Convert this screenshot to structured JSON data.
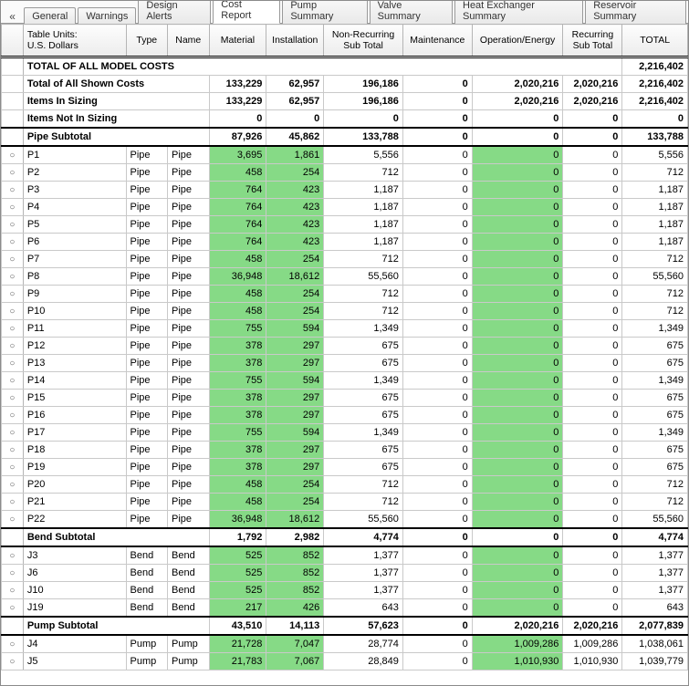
{
  "tabs": [
    "General",
    "Warnings",
    "Design Alerts",
    "Cost Report",
    "Pump Summary",
    "Valve Summary",
    "Heat Exchanger Summary",
    "Reservoir Summary"
  ],
  "activeTab": 3,
  "collapse_icon": "«",
  "headers": {
    "units": "Table Units:\nU.S. Dollars",
    "type": "Type",
    "name": "Name",
    "material": "Material",
    "installation": "Installation",
    "nrst": "Non-Recurring\nSub Total",
    "maint": "Maintenance",
    "opEn": "Operation/Energy",
    "rst": "Recurring\nSub Total",
    "total": "TOTAL"
  },
  "summary_title": "TOTAL OF ALL MODEL COSTS",
  "summary_total": "2,216,402",
  "summary_rows": [
    {
      "label": "Total of All Shown Costs",
      "mat": "133,229",
      "inst": "62,957",
      "nrst": "196,186",
      "maint": "0",
      "open": "2,020,216",
      "rst": "2,020,216",
      "tot": "2,216,402"
    },
    {
      "label": "Items In Sizing",
      "mat": "133,229",
      "inst": "62,957",
      "nrst": "196,186",
      "maint": "0",
      "open": "2,020,216",
      "rst": "2,020,216",
      "tot": "2,216,402"
    },
    {
      "label": "Items Not In Sizing",
      "mat": "0",
      "inst": "0",
      "nrst": "0",
      "maint": "0",
      "open": "0",
      "rst": "0",
      "tot": "0"
    }
  ],
  "sections": [
    {
      "title": "Pipe Subtotal",
      "mat": "87,926",
      "inst": "45,862",
      "nrst": "133,788",
      "maint": "0",
      "open": "0",
      "rst": "0",
      "tot": "133,788",
      "rows": [
        {
          "id": "P1",
          "t": "Pipe",
          "n": "Pipe",
          "mat": "3,695",
          "inst": "1,861",
          "nrst": "5,556",
          "maint": "0",
          "open": "0",
          "rst": "0",
          "tot": "5,556"
        },
        {
          "id": "P2",
          "t": "Pipe",
          "n": "Pipe",
          "mat": "458",
          "inst": "254",
          "nrst": "712",
          "maint": "0",
          "open": "0",
          "rst": "0",
          "tot": "712"
        },
        {
          "id": "P3",
          "t": "Pipe",
          "n": "Pipe",
          "mat": "764",
          "inst": "423",
          "nrst": "1,187",
          "maint": "0",
          "open": "0",
          "rst": "0",
          "tot": "1,187"
        },
        {
          "id": "P4",
          "t": "Pipe",
          "n": "Pipe",
          "mat": "764",
          "inst": "423",
          "nrst": "1,187",
          "maint": "0",
          "open": "0",
          "rst": "0",
          "tot": "1,187"
        },
        {
          "id": "P5",
          "t": "Pipe",
          "n": "Pipe",
          "mat": "764",
          "inst": "423",
          "nrst": "1,187",
          "maint": "0",
          "open": "0",
          "rst": "0",
          "tot": "1,187"
        },
        {
          "id": "P6",
          "t": "Pipe",
          "n": "Pipe",
          "mat": "764",
          "inst": "423",
          "nrst": "1,187",
          "maint": "0",
          "open": "0",
          "rst": "0",
          "tot": "1,187"
        },
        {
          "id": "P7",
          "t": "Pipe",
          "n": "Pipe",
          "mat": "458",
          "inst": "254",
          "nrst": "712",
          "maint": "0",
          "open": "0",
          "rst": "0",
          "tot": "712"
        },
        {
          "id": "P8",
          "t": "Pipe",
          "n": "Pipe",
          "mat": "36,948",
          "inst": "18,612",
          "nrst": "55,560",
          "maint": "0",
          "open": "0",
          "rst": "0",
          "tot": "55,560"
        },
        {
          "id": "P9",
          "t": "Pipe",
          "n": "Pipe",
          "mat": "458",
          "inst": "254",
          "nrst": "712",
          "maint": "0",
          "open": "0",
          "rst": "0",
          "tot": "712"
        },
        {
          "id": "P10",
          "t": "Pipe",
          "n": "Pipe",
          "mat": "458",
          "inst": "254",
          "nrst": "712",
          "maint": "0",
          "open": "0",
          "rst": "0",
          "tot": "712"
        },
        {
          "id": "P11",
          "t": "Pipe",
          "n": "Pipe",
          "mat": "755",
          "inst": "594",
          "nrst": "1,349",
          "maint": "0",
          "open": "0",
          "rst": "0",
          "tot": "1,349"
        },
        {
          "id": "P12",
          "t": "Pipe",
          "n": "Pipe",
          "mat": "378",
          "inst": "297",
          "nrst": "675",
          "maint": "0",
          "open": "0",
          "rst": "0",
          "tot": "675"
        },
        {
          "id": "P13",
          "t": "Pipe",
          "n": "Pipe",
          "mat": "378",
          "inst": "297",
          "nrst": "675",
          "maint": "0",
          "open": "0",
          "rst": "0",
          "tot": "675"
        },
        {
          "id": "P14",
          "t": "Pipe",
          "n": "Pipe",
          "mat": "755",
          "inst": "594",
          "nrst": "1,349",
          "maint": "0",
          "open": "0",
          "rst": "0",
          "tot": "1,349"
        },
        {
          "id": "P15",
          "t": "Pipe",
          "n": "Pipe",
          "mat": "378",
          "inst": "297",
          "nrst": "675",
          "maint": "0",
          "open": "0",
          "rst": "0",
          "tot": "675"
        },
        {
          "id": "P16",
          "t": "Pipe",
          "n": "Pipe",
          "mat": "378",
          "inst": "297",
          "nrst": "675",
          "maint": "0",
          "open": "0",
          "rst": "0",
          "tot": "675"
        },
        {
          "id": "P17",
          "t": "Pipe",
          "n": "Pipe",
          "mat": "755",
          "inst": "594",
          "nrst": "1,349",
          "maint": "0",
          "open": "0",
          "rst": "0",
          "tot": "1,349"
        },
        {
          "id": "P18",
          "t": "Pipe",
          "n": "Pipe",
          "mat": "378",
          "inst": "297",
          "nrst": "675",
          "maint": "0",
          "open": "0",
          "rst": "0",
          "tot": "675"
        },
        {
          "id": "P19",
          "t": "Pipe",
          "n": "Pipe",
          "mat": "378",
          "inst": "297",
          "nrst": "675",
          "maint": "0",
          "open": "0",
          "rst": "0",
          "tot": "675"
        },
        {
          "id": "P20",
          "t": "Pipe",
          "n": "Pipe",
          "mat": "458",
          "inst": "254",
          "nrst": "712",
          "maint": "0",
          "open": "0",
          "rst": "0",
          "tot": "712"
        },
        {
          "id": "P21",
          "t": "Pipe",
          "n": "Pipe",
          "mat": "458",
          "inst": "254",
          "nrst": "712",
          "maint": "0",
          "open": "0",
          "rst": "0",
          "tot": "712"
        },
        {
          "id": "P22",
          "t": "Pipe",
          "n": "Pipe",
          "mat": "36,948",
          "inst": "18,612",
          "nrst": "55,560",
          "maint": "0",
          "open": "0",
          "rst": "0",
          "tot": "55,560"
        }
      ]
    },
    {
      "title": "Bend Subtotal",
      "mat": "1,792",
      "inst": "2,982",
      "nrst": "4,774",
      "maint": "0",
      "open": "0",
      "rst": "0",
      "tot": "4,774",
      "rows": [
        {
          "id": "J3",
          "t": "Bend",
          "n": "Bend",
          "mat": "525",
          "inst": "852",
          "nrst": "1,377",
          "maint": "0",
          "open": "0",
          "rst": "0",
          "tot": "1,377"
        },
        {
          "id": "J6",
          "t": "Bend",
          "n": "Bend",
          "mat": "525",
          "inst": "852",
          "nrst": "1,377",
          "maint": "0",
          "open": "0",
          "rst": "0",
          "tot": "1,377"
        },
        {
          "id": "J10",
          "t": "Bend",
          "n": "Bend",
          "mat": "525",
          "inst": "852",
          "nrst": "1,377",
          "maint": "0",
          "open": "0",
          "rst": "0",
          "tot": "1,377"
        },
        {
          "id": "J19",
          "t": "Bend",
          "n": "Bend",
          "mat": "217",
          "inst": "426",
          "nrst": "643",
          "maint": "0",
          "open": "0",
          "rst": "0",
          "tot": "643"
        }
      ]
    },
    {
      "title": "Pump Subtotal",
      "mat": "43,510",
      "inst": "14,113",
      "nrst": "57,623",
      "maint": "0",
      "open": "2,020,216",
      "rst": "2,020,216",
      "tot": "2,077,839",
      "rows": [
        {
          "id": "J4",
          "t": "Pump",
          "n": "Pump",
          "mat": "21,728",
          "inst": "7,047",
          "nrst": "28,774",
          "maint": "0",
          "open": "1,009,286",
          "rst": "1,009,286",
          "tot": "1,038,061"
        },
        {
          "id": "J5",
          "t": "Pump",
          "n": "Pump",
          "mat": "21,783",
          "inst": "7,067",
          "nrst": "28,849",
          "maint": "0",
          "open": "1,010,930",
          "rst": "1,010,930",
          "tot": "1,039,779"
        }
      ]
    }
  ],
  "row_marker": "○",
  "colors": {
    "green_cell": "#86da86"
  }
}
